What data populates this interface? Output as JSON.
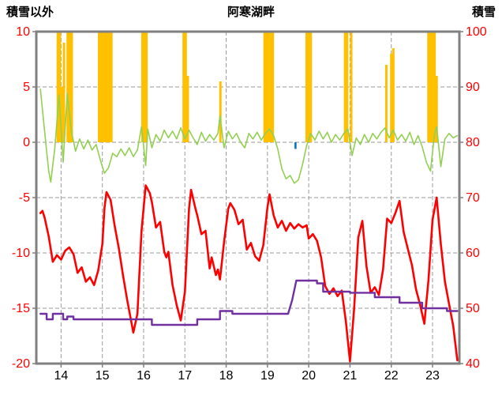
{
  "header": {
    "left_label": "積雪以外",
    "title": "阿寒湖畔",
    "right_label": "積雪"
  },
  "chart_data": {
    "type": "line",
    "title": "阿寒湖畔",
    "x_axis": {
      "min": 13.4,
      "max": 23.65,
      "ticks": [
        14,
        15,
        16,
        17,
        18,
        19,
        20,
        21,
        22,
        23
      ]
    },
    "left_axis": {
      "label": "積雪以外",
      "min": -20,
      "max": 10,
      "ticks": [
        10,
        5,
        0,
        -5,
        -10,
        -15,
        -20
      ]
    },
    "right_axis": {
      "label": "積雪",
      "min": 40,
      "max": 100,
      "ticks": [
        100,
        90,
        80,
        70,
        60,
        50,
        40
      ]
    },
    "grid": true,
    "legend": "none",
    "colors": {
      "orange_bars": "#FFC000",
      "green_line": "#92D050",
      "red_line": "#FF0000",
      "purple_line": "#7030A0",
      "blue_bar": "#0070C0",
      "axis_text_red": "#FF0000",
      "axis_text_black": "#000000",
      "frame": "#808080",
      "grid": "#9A9A9A"
    },
    "series": [
      {
        "name": "orange-bars",
        "type": "bar",
        "axis": "left",
        "color": "#FFC000",
        "bar_width_days": 0.05,
        "points": [
          [
            13.92,
            10
          ],
          [
            13.97,
            10
          ],
          [
            14.02,
            5
          ],
          [
            14.07,
            9
          ],
          [
            14.16,
            10
          ],
          [
            14.21,
            10
          ],
          [
            14.26,
            10
          ],
          [
            14.92,
            10
          ],
          [
            14.97,
            10
          ],
          [
            15.02,
            10
          ],
          [
            15.07,
            10
          ],
          [
            15.12,
            10
          ],
          [
            15.17,
            10
          ],
          [
            15.22,
            10
          ],
          [
            15.97,
            10
          ],
          [
            16.02,
            10
          ],
          [
            16.07,
            10
          ],
          [
            16.97,
            10
          ],
          [
            17.02,
            10
          ],
          [
            17.07,
            6
          ],
          [
            17.86,
            5.5
          ],
          [
            18.93,
            10
          ],
          [
            18.98,
            10
          ],
          [
            19.03,
            10
          ],
          [
            19.08,
            10
          ],
          [
            19.13,
            10
          ],
          [
            19.95,
            10
          ],
          [
            20.0,
            10
          ],
          [
            20.05,
            10
          ],
          [
            20.88,
            10
          ],
          [
            20.93,
            10
          ],
          [
            21.03,
            10
          ],
          [
            21.88,
            7
          ],
          [
            22.0,
            8
          ],
          [
            22.05,
            8.5
          ],
          [
            22.9,
            10
          ],
          [
            22.95,
            10
          ],
          [
            23.0,
            10
          ],
          [
            23.05,
            10
          ],
          [
            23.1,
            6
          ]
        ]
      },
      {
        "name": "blue-bar",
        "type": "bar",
        "axis": "left",
        "color": "#0070C0",
        "bar_width_days": 0.04,
        "points": [
          [
            19.68,
            -0.6
          ]
        ]
      },
      {
        "name": "green-line",
        "type": "line",
        "axis": "left",
        "color": "#92D050",
        "width": 1.6,
        "points": [
          [
            13.5,
            4.8
          ],
          [
            13.6,
            1.0
          ],
          [
            13.7,
            -2.6
          ],
          [
            13.75,
            -3.6
          ],
          [
            13.85,
            -0.5
          ],
          [
            13.95,
            4.3
          ],
          [
            14.05,
            -1.8
          ],
          [
            14.15,
            4.4
          ],
          [
            14.25,
            1.0
          ],
          [
            14.35,
            -0.8
          ],
          [
            14.45,
            0.3
          ],
          [
            14.55,
            -0.6
          ],
          [
            14.65,
            0.2
          ],
          [
            14.75,
            -0.7
          ],
          [
            14.85,
            -0.2
          ],
          [
            14.95,
            -1.6
          ],
          [
            15.05,
            -2.8
          ],
          [
            15.15,
            -2.3
          ],
          [
            15.25,
            -1.0
          ],
          [
            15.35,
            -1.3
          ],
          [
            15.45,
            -0.6
          ],
          [
            15.55,
            -1.2
          ],
          [
            15.65,
            -0.5
          ],
          [
            15.75,
            -1.3
          ],
          [
            15.85,
            -0.7
          ],
          [
            15.95,
            1.4
          ],
          [
            16.05,
            -2.1
          ],
          [
            16.1,
            1.2
          ],
          [
            16.2,
            -0.5
          ],
          [
            16.3,
            0.7
          ],
          [
            16.4,
            0.1
          ],
          [
            16.5,
            1.1
          ],
          [
            16.6,
            0.4
          ],
          [
            16.7,
            1.0
          ],
          [
            16.8,
            0.3
          ],
          [
            16.9,
            1.3
          ],
          [
            17.0,
            0.3
          ],
          [
            17.1,
            1.1
          ],
          [
            17.2,
            0.4
          ],
          [
            17.3,
            -0.2
          ],
          [
            17.4,
            0.9
          ],
          [
            17.5,
            0.1
          ],
          [
            17.6,
            0.7
          ],
          [
            17.7,
            0.2
          ],
          [
            17.8,
            0.8
          ],
          [
            17.85,
            2.4
          ],
          [
            17.95,
            -0.5
          ],
          [
            18.05,
            1.0
          ],
          [
            18.15,
            0.3
          ],
          [
            18.25,
            0.8
          ],
          [
            18.35,
            0.0
          ],
          [
            18.45,
            -0.5
          ],
          [
            18.55,
            0.8
          ],
          [
            18.65,
            0.3
          ],
          [
            18.75,
            0.9
          ],
          [
            18.85,
            0.2
          ],
          [
            18.95,
            0.8
          ],
          [
            19.05,
            1.2
          ],
          [
            19.15,
            0.6
          ],
          [
            19.25,
            -0.6
          ],
          [
            19.35,
            -2.4
          ],
          [
            19.45,
            -3.3
          ],
          [
            19.55,
            -3.0
          ],
          [
            19.65,
            -3.7
          ],
          [
            19.75,
            -3.4
          ],
          [
            19.85,
            -2.0
          ],
          [
            19.95,
            -0.3
          ],
          [
            20.05,
            0.8
          ],
          [
            20.15,
            0.2
          ],
          [
            20.25,
            1.0
          ],
          [
            20.35,
            0.3
          ],
          [
            20.45,
            0.9
          ],
          [
            20.55,
            0.0
          ],
          [
            20.65,
            0.7
          ],
          [
            20.75,
            0.2
          ],
          [
            20.85,
            0.8
          ],
          [
            20.95,
            1.2
          ],
          [
            21.05,
            -1.2
          ],
          [
            21.15,
            0.4
          ],
          [
            21.25,
            -0.2
          ],
          [
            21.35,
            0.7
          ],
          [
            21.45,
            0.0
          ],
          [
            21.55,
            0.8
          ],
          [
            21.65,
            0.3
          ],
          [
            21.75,
            0.9
          ],
          [
            21.85,
            1.3
          ],
          [
            21.95,
            0.4
          ],
          [
            22.05,
            1.1
          ],
          [
            22.15,
            0.2
          ],
          [
            22.25,
            0.7
          ],
          [
            22.35,
            0.1
          ],
          [
            22.45,
            0.9
          ],
          [
            22.55,
            -0.2
          ],
          [
            22.65,
            0.6
          ],
          [
            22.75,
            -0.4
          ],
          [
            22.85,
            -1.8
          ],
          [
            22.95,
            -2.6
          ],
          [
            23.05,
            0.8
          ],
          [
            23.1,
            1.4
          ],
          [
            23.2,
            -2.2
          ],
          [
            23.3,
            0.3
          ],
          [
            23.4,
            0.8
          ],
          [
            23.5,
            0.4
          ],
          [
            23.6,
            0.6
          ]
        ]
      },
      {
        "name": "red-line",
        "type": "line",
        "axis": "left",
        "color": "#FF0000",
        "width": 2.6,
        "points": [
          [
            13.5,
            -6.4
          ],
          [
            13.55,
            -6.2
          ],
          [
            13.6,
            -6.8
          ],
          [
            13.7,
            -8.5
          ],
          [
            13.8,
            -10.8
          ],
          [
            13.9,
            -10.2
          ],
          [
            14.0,
            -10.6
          ],
          [
            14.1,
            -9.8
          ],
          [
            14.2,
            -9.5
          ],
          [
            14.3,
            -10.1
          ],
          [
            14.4,
            -11.8
          ],
          [
            14.5,
            -11.3
          ],
          [
            14.6,
            -12.6
          ],
          [
            14.7,
            -12.2
          ],
          [
            14.8,
            -12.9
          ],
          [
            14.9,
            -11.6
          ],
          [
            15.0,
            -9.2
          ],
          [
            15.05,
            -6.0
          ],
          [
            15.1,
            -4.5
          ],
          [
            15.2,
            -5.2
          ],
          [
            15.3,
            -7.6
          ],
          [
            15.4,
            -9.6
          ],
          [
            15.5,
            -12.0
          ],
          [
            15.6,
            -14.2
          ],
          [
            15.7,
            -16.2
          ],
          [
            15.75,
            -17.2
          ],
          [
            15.85,
            -15.5
          ],
          [
            15.95,
            -8.0
          ],
          [
            16.05,
            -3.9
          ],
          [
            16.15,
            -4.6
          ],
          [
            16.2,
            -5.4
          ],
          [
            16.3,
            -7.7
          ],
          [
            16.4,
            -7.2
          ],
          [
            16.5,
            -9.9
          ],
          [
            16.55,
            -10.4
          ],
          [
            16.6,
            -9.9
          ],
          [
            16.7,
            -12.9
          ],
          [
            16.8,
            -14.7
          ],
          [
            16.9,
            -16.1
          ],
          [
            17.0,
            -13.5
          ],
          [
            17.1,
            -6.0
          ],
          [
            17.15,
            -4.3
          ],
          [
            17.25,
            -5.9
          ],
          [
            17.3,
            -6.6
          ],
          [
            17.4,
            -8.3
          ],
          [
            17.5,
            -8.0
          ],
          [
            17.6,
            -11.4
          ],
          [
            17.65,
            -10.4
          ],
          [
            17.75,
            -12.0
          ],
          [
            17.8,
            -11.5
          ],
          [
            17.85,
            -12.4
          ],
          [
            17.95,
            -9.0
          ],
          [
            18.05,
            -6.0
          ],
          [
            18.1,
            -5.5
          ],
          [
            18.2,
            -6.1
          ],
          [
            18.3,
            -7.4
          ],
          [
            18.4,
            -7.0
          ],
          [
            18.5,
            -9.7
          ],
          [
            18.6,
            -9.1
          ],
          [
            18.7,
            -10.3
          ],
          [
            18.8,
            -10.7
          ],
          [
            18.9,
            -9.3
          ],
          [
            19.0,
            -5.9
          ],
          [
            19.05,
            -4.7
          ],
          [
            19.15,
            -6.6
          ],
          [
            19.25,
            -7.7
          ],
          [
            19.35,
            -7.1
          ],
          [
            19.45,
            -8.0
          ],
          [
            19.55,
            -7.3
          ],
          [
            19.65,
            -7.8
          ],
          [
            19.75,
            -7.4
          ],
          [
            19.85,
            -7.7
          ],
          [
            19.95,
            -7.5
          ],
          [
            20.0,
            -8.7
          ],
          [
            20.1,
            -8.3
          ],
          [
            20.2,
            -8.9
          ],
          [
            20.3,
            -10.4
          ],
          [
            20.4,
            -13.0
          ],
          [
            20.5,
            -13.7
          ],
          [
            20.6,
            -13.2
          ],
          [
            20.7,
            -13.9
          ],
          [
            20.8,
            -13.4
          ],
          [
            20.9,
            -16.2
          ],
          [
            21.0,
            -19.8
          ],
          [
            21.1,
            -15.0
          ],
          [
            21.2,
            -8.6
          ],
          [
            21.3,
            -7.1
          ],
          [
            21.4,
            -11.2
          ],
          [
            21.5,
            -13.6
          ],
          [
            21.6,
            -13.1
          ],
          [
            21.7,
            -13.8
          ],
          [
            21.8,
            -11.5
          ],
          [
            21.9,
            -6.9
          ],
          [
            22.0,
            -7.3
          ],
          [
            22.1,
            -6.4
          ],
          [
            22.2,
            -5.3
          ],
          [
            22.3,
            -8.1
          ],
          [
            22.4,
            -9.6
          ],
          [
            22.5,
            -11.1
          ],
          [
            22.6,
            -13.3
          ],
          [
            22.7,
            -14.7
          ],
          [
            22.8,
            -16.4
          ],
          [
            22.9,
            -12.5
          ],
          [
            23.0,
            -7.0
          ],
          [
            23.1,
            -5.0
          ],
          [
            23.2,
            -9.2
          ],
          [
            23.3,
            -12.6
          ],
          [
            23.4,
            -14.6
          ],
          [
            23.5,
            -16.6
          ],
          [
            23.6,
            -19.7
          ]
        ]
      },
      {
        "name": "purple-line",
        "type": "line",
        "axis": "right",
        "color": "#7030A0",
        "width": 2.4,
        "points": [
          [
            13.5,
            49
          ],
          [
            13.65,
            49
          ],
          [
            13.65,
            48
          ],
          [
            13.8,
            48
          ],
          [
            13.8,
            49
          ],
          [
            14.05,
            49
          ],
          [
            14.05,
            48
          ],
          [
            14.15,
            48
          ],
          [
            14.15,
            48.5
          ],
          [
            14.3,
            48.5
          ],
          [
            14.3,
            48
          ],
          [
            16.2,
            48
          ],
          [
            16.2,
            47
          ],
          [
            17.3,
            47
          ],
          [
            17.3,
            48
          ],
          [
            17.85,
            48
          ],
          [
            17.85,
            49.5
          ],
          [
            18.15,
            49.5
          ],
          [
            18.15,
            49
          ],
          [
            19.5,
            49
          ],
          [
            19.6,
            51.5
          ],
          [
            19.7,
            55
          ],
          [
            20.2,
            55
          ],
          [
            20.2,
            54.5
          ],
          [
            20.35,
            54.5
          ],
          [
            20.35,
            53
          ],
          [
            21.0,
            53
          ],
          [
            21.0,
            52.8
          ],
          [
            21.6,
            52.8
          ],
          [
            21.6,
            52
          ],
          [
            22.2,
            52
          ],
          [
            22.2,
            51
          ],
          [
            22.75,
            51
          ],
          [
            22.75,
            50
          ],
          [
            23.35,
            50
          ],
          [
            23.35,
            49.5
          ],
          [
            23.6,
            49.5
          ]
        ]
      }
    ]
  }
}
